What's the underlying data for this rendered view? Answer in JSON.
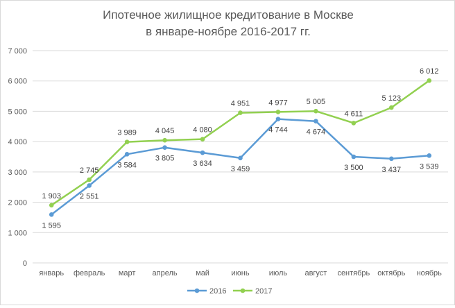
{
  "chart_data": {
    "type": "line",
    "title": [
      "Ипотечное жилищное кредитование в Москве",
      "в январе-ноябре 2016-2017 гг."
    ],
    "xlabel": "",
    "ylabel": "",
    "categories": [
      "январь",
      "февраль",
      "март",
      "апрель",
      "май",
      "июнь",
      "июль",
      "август",
      "сентябрь",
      "октябрь",
      "ноябрь"
    ],
    "ylim": [
      0,
      7000
    ],
    "yticks": [
      "0",
      "1 000",
      "2 000",
      "3 000",
      "4 000",
      "5 000",
      "6 000",
      "7 000"
    ],
    "grid": true,
    "legend_position": "bottom",
    "series": [
      {
        "name": "2016",
        "color": "#5b9bd5",
        "values": [
          1595,
          2551,
          3584,
          3805,
          3634,
          3459,
          4744,
          4674,
          3500,
          3437,
          3539
        ],
        "labels": [
          "1 595",
          "2 551",
          "3 584",
          "3 805",
          "3 634",
          "3 459",
          "4 744",
          "4 674",
          "3 500",
          "3 437",
          "3 539"
        ]
      },
      {
        "name": "2017",
        "color": "#92d050",
        "values": [
          1903,
          2745,
          3989,
          4045,
          4080,
          4951,
          4977,
          5005,
          4611,
          5123,
          6012
        ],
        "labels": [
          "1 903",
          "2 745",
          "3 989",
          "4 045",
          "4 080",
          "4 951",
          "4 977",
          "5 005",
          "4 611",
          "5 123",
          "6 012"
        ]
      }
    ]
  }
}
